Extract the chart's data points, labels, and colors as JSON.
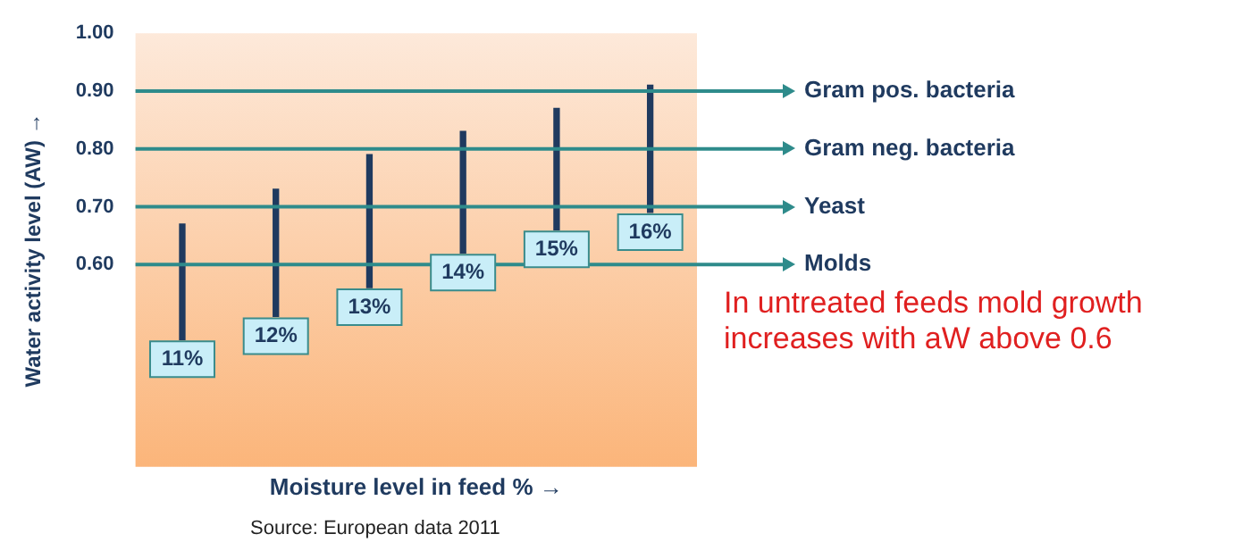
{
  "chart_data": {
    "type": "bar",
    "xlabel": "Moisture level in feed % →",
    "ylabel": "Water activity level (AW) →",
    "categories": [
      "11%",
      "12%",
      "13%",
      "14%",
      "15%",
      "16%"
    ],
    "base": [
      0.47,
      0.51,
      0.56,
      0.62,
      0.66,
      0.69
    ],
    "values": [
      0.2,
      0.22,
      0.23,
      0.21,
      0.21,
      0.22
    ],
    "color": "#1f3a5f",
    "ylim": [
      0.25,
      1.0
    ],
    "yticks": [
      {
        "value": 0.6,
        "label": "0.60"
      },
      {
        "value": 0.7,
        "label": "0.70"
      },
      {
        "value": 0.8,
        "label": "0.80"
      },
      {
        "value": 0.9,
        "label": "0.90"
      },
      {
        "value": 1.0,
        "label": "1.00"
      }
    ],
    "grid": false,
    "legend": false,
    "ref_lines": [
      {
        "axis": "y",
        "value": 0.9,
        "label": "Gram pos. bacteria",
        "color": "#2e8b8b"
      },
      {
        "axis": "y",
        "value": 0.8,
        "label": "Gram neg. bacteria",
        "color": "#2e8b8b"
      },
      {
        "axis": "y",
        "value": 0.7,
        "label": "Yeast",
        "color": "#2e8b8b"
      },
      {
        "axis": "y",
        "value": 0.6,
        "label": "Molds",
        "color": "#2e8b8b"
      }
    ],
    "annotations": [
      "In untreated feeds mold growth increases with aW above 0.6",
      "Source: European data 2011"
    ]
  }
}
